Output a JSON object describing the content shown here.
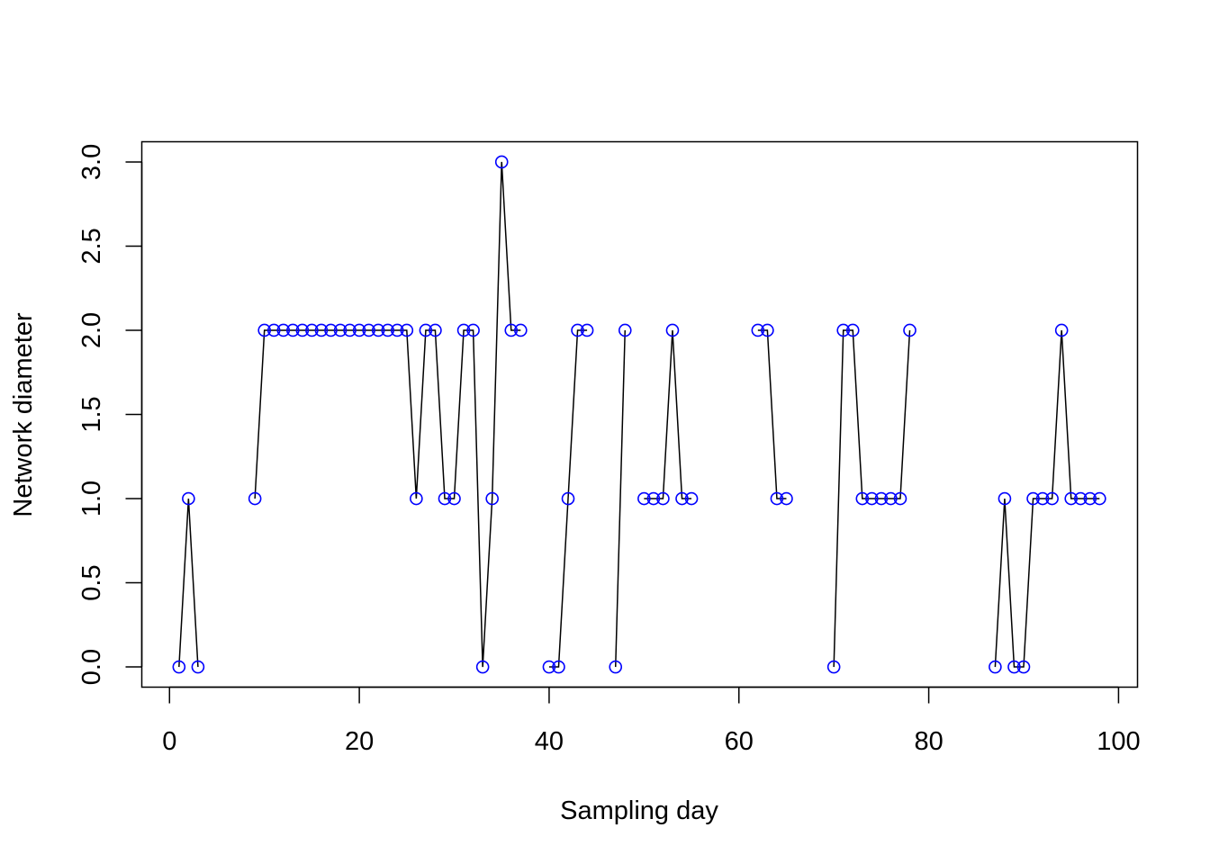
{
  "chart_data": {
    "type": "line",
    "title": "",
    "xlabel": "Sampling day",
    "ylabel": "Network diameter",
    "xlim": [
      -2.92,
      102
    ],
    "ylim": [
      -0.12,
      3.12
    ],
    "xticks": [
      0,
      20,
      40,
      60,
      80,
      100
    ],
    "xtick_labels": [
      "0",
      "20",
      "40",
      "60",
      "80",
      "100"
    ],
    "yticks": [
      0.0,
      0.5,
      1.0,
      1.5,
      2.0,
      2.5,
      3.0
    ],
    "ytick_labels": [
      "0.0",
      "0.5",
      "1.0",
      "1.5",
      "2.0",
      "2.5",
      "3.0"
    ],
    "grid": false,
    "line_color": "#000000",
    "point_color": "#0000ff",
    "marker": "open-circle",
    "series": [
      {
        "name": "Network diameter",
        "x": [
          1,
          2,
          3,
          9,
          10,
          11,
          12,
          13,
          14,
          15,
          16,
          17,
          18,
          19,
          20,
          21,
          22,
          23,
          24,
          25,
          26,
          27,
          28,
          29,
          30,
          31,
          32,
          33,
          34,
          35,
          36,
          37,
          40,
          41,
          42,
          43,
          44,
          47,
          48,
          50,
          51,
          52,
          53,
          54,
          55,
          62,
          63,
          64,
          65,
          70,
          71,
          72,
          73,
          74,
          75,
          76,
          77,
          78,
          87,
          88,
          89,
          90,
          91,
          92,
          93,
          94,
          95,
          96,
          97,
          98
        ],
        "values": [
          0,
          1,
          0,
          1,
          2,
          2,
          2,
          2,
          2,
          2,
          2,
          2,
          2,
          2,
          2,
          2,
          2,
          2,
          2,
          2,
          1,
          2,
          2,
          1,
          1,
          2,
          2,
          0,
          1,
          3,
          2,
          2,
          0,
          0,
          1,
          2,
          2,
          0,
          2,
          1,
          1,
          1,
          2,
          1,
          1,
          2,
          2,
          1,
          1,
          0,
          2,
          2,
          1,
          1,
          1,
          1,
          1,
          2,
          0,
          1,
          0,
          0,
          1,
          1,
          1,
          2,
          1,
          1,
          1,
          1
        ]
      }
    ]
  }
}
